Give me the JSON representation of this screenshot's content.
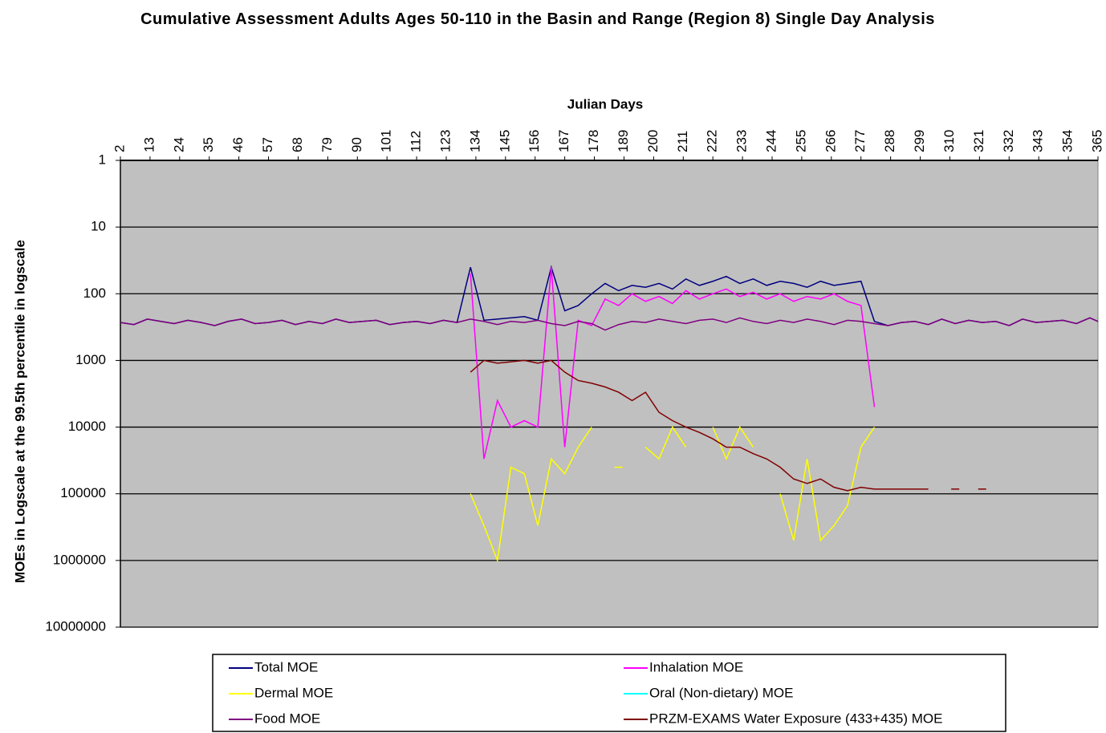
{
  "chart_data": {
    "type": "line",
    "title": "Cumulative Assessment Adults Ages 50-110 in the Basin and Range (Region 8) Single Day Analysis",
    "x_label": "Julian Days",
    "y_label": "MOEs in Logscale at the 99.5th percentile in logscale",
    "x": [
      2,
      7,
      12,
      17,
      22,
      27,
      32,
      37,
      42,
      47,
      52,
      57,
      62,
      67,
      72,
      77,
      82,
      87,
      92,
      97,
      102,
      107,
      112,
      117,
      122,
      127,
      132,
      137,
      142,
      147,
      152,
      157,
      162,
      167,
      172,
      177,
      182,
      187,
      192,
      197,
      202,
      207,
      212,
      217,
      222,
      227,
      232,
      237,
      242,
      247,
      252,
      257,
      262,
      267,
      272,
      277,
      282,
      287,
      292,
      297,
      302,
      307,
      312,
      317,
      322,
      327,
      332,
      337,
      342,
      347,
      352,
      357,
      362,
      365
    ],
    "xlim": [
      2,
      365
    ],
    "xticks": [
      2,
      13,
      24,
      35,
      46,
      57,
      68,
      79,
      90,
      101,
      112,
      123,
      134,
      145,
      156,
      167,
      178,
      189,
      200,
      211,
      222,
      233,
      244,
      255,
      266,
      277,
      288,
      299,
      310,
      321,
      332,
      343,
      354,
      365
    ],
    "ylim": [
      1,
      10000000
    ],
    "yticks": [
      1,
      10,
      100,
      1000,
      10000,
      100000,
      1000000,
      10000000
    ],
    "y_log_scale": true,
    "y_reversed": true,
    "grid": true,
    "legend_position": "bottom",
    "series": [
      {
        "name": "Total MOE",
        "color": "#000080",
        "values": [
          270,
          290,
          240,
          260,
          280,
          250,
          270,
          300,
          260,
          240,
          280,
          270,
          250,
          290,
          260,
          280,
          240,
          270,
          260,
          250,
          290,
          270,
          260,
          280,
          250,
          270,
          40,
          250,
          240,
          230,
          220,
          250,
          40,
          180,
          150,
          100,
          70,
          90,
          75,
          80,
          70,
          85,
          60,
          75,
          65,
          55,
          70,
          60,
          75,
          65,
          70,
          80,
          65,
          75,
          70,
          65,
          260,
          300,
          270,
          260,
          290,
          240,
          280,
          250,
          270,
          260,
          300,
          240,
          270,
          260,
          250,
          280,
          230,
          260
        ]
      },
      {
        "name": "Inhalation MOE",
        "color": "#ff00ff",
        "values": [
          null,
          null,
          null,
          null,
          null,
          null,
          null,
          null,
          null,
          null,
          null,
          null,
          null,
          null,
          null,
          null,
          null,
          null,
          null,
          null,
          null,
          null,
          null,
          null,
          null,
          null,
          50,
          30000,
          4000,
          10000,
          8000,
          10000,
          40,
          20000,
          250,
          300,
          120,
          150,
          100,
          130,
          110,
          140,
          90,
          120,
          100,
          85,
          110,
          95,
          120,
          100,
          130,
          110,
          120,
          100,
          130,
          150,
          5000,
          null,
          null,
          null,
          null,
          null,
          null,
          null,
          null,
          null,
          null,
          null,
          null,
          null,
          null,
          null,
          null,
          null
        ]
      },
      {
        "name": "Dermal MOE",
        "color": "#ffff00",
        "values": [
          null,
          null,
          null,
          null,
          null,
          null,
          null,
          null,
          null,
          null,
          null,
          null,
          null,
          null,
          null,
          null,
          null,
          null,
          null,
          null,
          null,
          null,
          null,
          null,
          null,
          null,
          100000,
          300000,
          1000000,
          40000,
          50000,
          300000,
          30000,
          50000,
          20000,
          10000,
          null,
          40000,
          null,
          20000,
          30000,
          10000,
          20000,
          null,
          10000,
          30000,
          10000,
          20000,
          null,
          100000,
          500000,
          30000,
          500000,
          300000,
          150000,
          20000,
          10000,
          null,
          null,
          null,
          null,
          null,
          null,
          null,
          null,
          null,
          null,
          null,
          null,
          null,
          null,
          null,
          null,
          null
        ]
      },
      {
        "name": "Oral (Non-dietary) MOE",
        "color": "#00ffff",
        "values": [
          null,
          null,
          null,
          null,
          null,
          null,
          null,
          null,
          null,
          null,
          null,
          null,
          null,
          null,
          null,
          null,
          null,
          null,
          null,
          null,
          null,
          null,
          null,
          null,
          null,
          null,
          null,
          null,
          null,
          null,
          null,
          null,
          null,
          null,
          null,
          null,
          null,
          null,
          null,
          null,
          null,
          null,
          null,
          null,
          null,
          null,
          null,
          null,
          null,
          null,
          null,
          null,
          null,
          null,
          null,
          null,
          null,
          null,
          null,
          null,
          null,
          null,
          null,
          null,
          null,
          null,
          null,
          null,
          null,
          null,
          null,
          null,
          null,
          null
        ]
      },
      {
        "name": "Food MOE",
        "color": "#800080",
        "values": [
          270,
          290,
          240,
          260,
          280,
          250,
          270,
          300,
          260,
          240,
          280,
          270,
          250,
          290,
          260,
          280,
          240,
          270,
          260,
          250,
          290,
          270,
          260,
          280,
          250,
          270,
          240,
          260,
          290,
          260,
          270,
          250,
          280,
          300,
          260,
          280,
          350,
          290,
          260,
          270,
          240,
          260,
          280,
          250,
          240,
          270,
          230,
          260,
          280,
          250,
          270,
          240,
          260,
          290,
          250,
          260,
          280,
          300,
          270,
          260,
          290,
          240,
          280,
          250,
          270,
          260,
          300,
          240,
          270,
          260,
          250,
          280,
          230,
          260
        ]
      },
      {
        "name": "PRZM-EXAMS Water Exposure (433+435) MOE",
        "color": "#800000",
        "values": [
          null,
          null,
          null,
          null,
          null,
          null,
          null,
          null,
          null,
          null,
          null,
          null,
          null,
          null,
          null,
          null,
          null,
          null,
          null,
          null,
          null,
          null,
          null,
          null,
          null,
          null,
          1500,
          1000,
          1100,
          1050,
          1000,
          1100,
          1000,
          1500,
          2000,
          2200,
          2500,
          3000,
          4000,
          3000,
          6000,
          8000,
          10000,
          12000,
          15000,
          20000,
          20000,
          25000,
          30000,
          40000,
          60000,
          70000,
          60000,
          80000,
          90000,
          80000,
          85000,
          85000,
          85000,
          85000,
          85000,
          null,
          85000,
          null,
          85000,
          null,
          null,
          null,
          null,
          null,
          null,
          null,
          null,
          null
        ]
      }
    ]
  }
}
